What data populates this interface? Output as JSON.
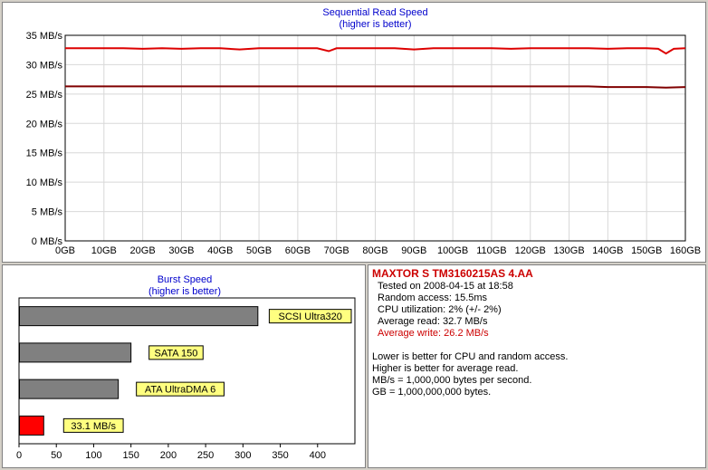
{
  "colors": {
    "title_blue": "#0000cc",
    "read_line": "#dd0000",
    "write_line": "#800000",
    "bar_gray": "#808080",
    "bar_red": "#ff0000",
    "label_yellow": "#ffff80"
  },
  "chart_data": [
    {
      "type": "line",
      "title": "Sequential Read Speed",
      "subtitle": "(higher is better)",
      "xlabel": "",
      "ylabel": "",
      "xlim": [
        0,
        160
      ],
      "ylim": [
        0,
        35
      ],
      "grid": true,
      "x_ticks": [
        "0GB",
        "10GB",
        "20GB",
        "30GB",
        "40GB",
        "50GB",
        "60GB",
        "70GB",
        "80GB",
        "90GB",
        "100GB",
        "110GB",
        "120GB",
        "130GB",
        "140GB",
        "150GB",
        "160GB"
      ],
      "y_ticks": [
        "0 MB/s",
        "5 MB/s",
        "10 MB/s",
        "15 MB/s",
        "20 MB/s",
        "25 MB/s",
        "30 MB/s",
        "35 MB/s"
      ],
      "series": [
        {
          "x": [
            0,
            5,
            10,
            15,
            20,
            25,
            30,
            35,
            40,
            45,
            50,
            55,
            60,
            65,
            68,
            70,
            75,
            80,
            85,
            90,
            95,
            100,
            105,
            110,
            115,
            120,
            125,
            130,
            135,
            140,
            145,
            150,
            153,
            155,
            157,
            160
          ],
          "values": [
            32.8,
            32.8,
            32.8,
            32.8,
            32.7,
            32.8,
            32.7,
            32.8,
            32.8,
            32.6,
            32.8,
            32.8,
            32.8,
            32.8,
            32.3,
            32.8,
            32.8,
            32.8,
            32.8,
            32.6,
            32.8,
            32.8,
            32.8,
            32.8,
            32.7,
            32.8,
            32.8,
            32.8,
            32.8,
            32.7,
            32.8,
            32.8,
            32.7,
            31.9,
            32.7,
            32.8
          ]
        },
        {
          "x": [
            0,
            20,
            40,
            60,
            80,
            100,
            120,
            130,
            135,
            140,
            145,
            150,
            155,
            160
          ],
          "values": [
            26.3,
            26.3,
            26.3,
            26.3,
            26.3,
            26.3,
            26.3,
            26.3,
            26.3,
            26.2,
            26.2,
            26.2,
            26.1,
            26.2
          ]
        }
      ]
    },
    {
      "type": "bar",
      "orientation": "horizontal",
      "title": "Burst Speed",
      "subtitle": "(higher is better)",
      "xlim": [
        0,
        450
      ],
      "x_ticks": [
        "0",
        "50",
        "100",
        "150",
        "200",
        "250",
        "300",
        "350",
        "400"
      ],
      "categories": [
        "SCSI Ultra320",
        "SATA 150",
        "ATA UltraDMA 6",
        "33.1 MB/s"
      ],
      "values": [
        320,
        150,
        133,
        33.1
      ]
    }
  ],
  "info": {
    "drive": "MAXTOR S TM3160215AS 4.AA",
    "tested": "Tested on 2008-04-15 at 18:58",
    "random_access": "Random access: 15.5ms",
    "cpu": "CPU utilization: 2% (+/- 2%)",
    "avg_read": "Average read: 32.7 MB/s",
    "avg_write": "Average write: 26.2 MB/s",
    "note1": "Lower is better for CPU and random access.",
    "note2": "Higher is better for average read.",
    "note3": "MB/s = 1,000,000 bytes per second.",
    "note4": "GB = 1,000,000,000 bytes."
  }
}
